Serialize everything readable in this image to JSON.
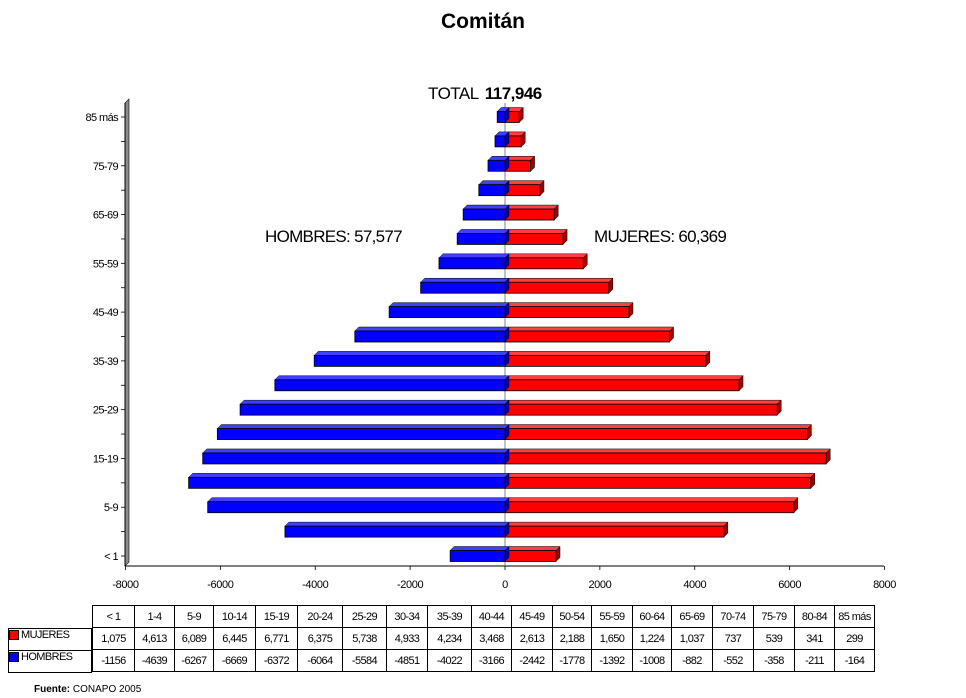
{
  "chart_data": {
    "type": "bar",
    "orientation": "horizontal",
    "title": "Comitán",
    "categories": [
      "< 1",
      "1-4",
      "5-9",
      "10-14",
      "15-19",
      "20-24",
      "25-29",
      "30-34",
      "35-39",
      "40-44",
      "45-49",
      "50-54",
      "55-59",
      "60-64",
      "65-69",
      "70-74",
      "75-79",
      "80-84",
      "85 más"
    ],
    "axis_tick_labels": [
      "< 1",
      "5-9",
      "15-19",
      "25-29",
      "35-39",
      "45-49",
      "55-59",
      "65-69",
      "75-79",
      "85 más"
    ],
    "series": [
      {
        "name": "MUJERES",
        "color": "#ff0000",
        "values": [
          1075,
          4613,
          6089,
          6445,
          6771,
          6375,
          5738,
          4933,
          4234,
          3468,
          2613,
          2188,
          1650,
          1224,
          1037,
          737,
          539,
          341,
          299
        ],
        "display": [
          "1,075",
          "4,613",
          "6,089",
          "6,445",
          "6,771",
          "6,375",
          "5,738",
          "4,933",
          "4,234",
          "3,468",
          "2,613",
          "2,188",
          "1,650",
          "1,224",
          "1,037",
          "737",
          "539",
          "341",
          "299"
        ]
      },
      {
        "name": "HOMBRES",
        "color": "#0000ff",
        "values": [
          -1156,
          -4639,
          -6267,
          -6669,
          -6372,
          -6064,
          -5584,
          -4851,
          -4022,
          -3166,
          -2442,
          -1778,
          -1392,
          -1008,
          -882,
          -552,
          -358,
          -211,
          -164
        ],
        "display": [
          "-1156",
          "-4639",
          "-6267",
          "-6669",
          "-6372",
          "-6064",
          "-5584",
          "-4851",
          "-4022",
          "-3166",
          "-2442",
          "-1778",
          "-1392",
          "-1008",
          "-882",
          "-552",
          "-358",
          "-211",
          "-164"
        ]
      }
    ],
    "xlim": [
      -8000,
      8000
    ],
    "xticks": [
      -8000,
      -6000,
      -4000,
      -2000,
      0,
      2000,
      4000,
      6000,
      8000
    ],
    "xtick_labels": [
      "-8000",
      "-6000",
      "-4000",
      "-2000",
      "0",
      "2000",
      "4000",
      "6000",
      "8000"
    ],
    "grid": false,
    "legend": "data table below chart"
  },
  "annotations": {
    "total_label": "TOTAL",
    "total_value": "117,946",
    "hombres": "HOMBRES: 57,577",
    "mujeres": "MUJERES: 60,369"
  },
  "source": {
    "label": "Fuente:",
    "text": "CONAPO 2005"
  }
}
